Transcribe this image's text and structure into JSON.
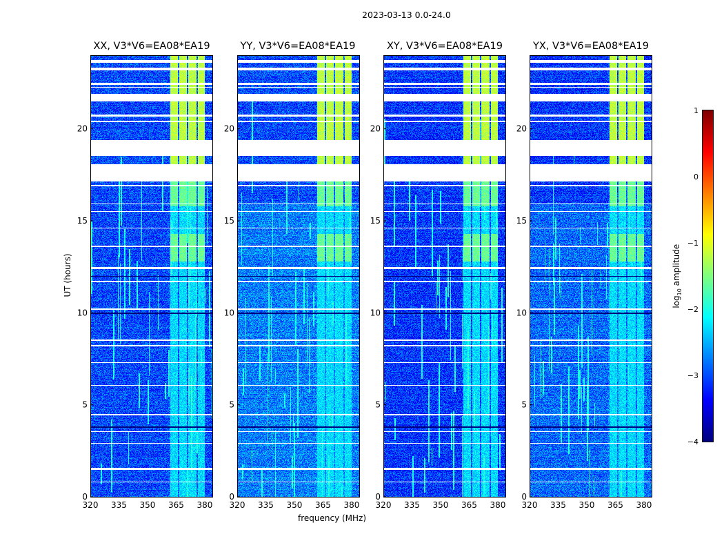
{
  "chart_data": {
    "type": "heatmap",
    "suptitle": "2023-03-13 0.0-24.0",
    "xlabel": "frequency (MHz)",
    "ylabel": "UT (hours)",
    "xlim": [
      320,
      384
    ],
    "ylim": [
      0,
      24
    ],
    "xticks": [
      "320",
      "335",
      "350",
      "365",
      "380"
    ],
    "yticks": [
      "0",
      "5",
      "10",
      "15",
      "20"
    ],
    "panels": [
      {
        "title": "XX, V3*V6=EA08*EA19"
      },
      {
        "title": "YY, V3*V6=EA08*EA19"
      },
      {
        "title": "XY, V3*V6=EA08*EA19"
      },
      {
        "title": "YX, V3*V6=EA08*EA19"
      }
    ],
    "colorbar": {
      "label_main": "log",
      "label_sub": "10",
      "label_rest": " amplitude",
      "range": [
        -4,
        1
      ],
      "ticks": [
        "1",
        "0",
        "−1",
        "−2",
        "−3",
        "−4"
      ],
      "colormap": "jet"
    },
    "background_log_amplitude": -3.0,
    "rfi_band_mhz": [
      361,
      380
    ],
    "rfi_band_log_amplitude_day": -1.2,
    "rfi_band_log_amplitude_night": -2.3,
    "flagged_hours": [
      [
        23.6,
        23.75
      ],
      [
        23.2,
        23.35
      ],
      [
        22.4,
        22.5
      ],
      [
        22.25,
        22.3
      ],
      [
        21.5,
        21.9
      ],
      [
        20.7,
        20.8
      ],
      [
        20.4,
        20.45
      ],
      [
        18.55,
        19.4
      ],
      [
        17.15,
        18.1
      ],
      [
        16.9,
        16.95
      ],
      [
        15.9,
        15.95
      ],
      [
        15.5,
        15.55
      ],
      [
        14.6,
        14.65
      ],
      [
        13.6,
        13.65
      ],
      [
        12.4,
        12.5
      ],
      [
        11.7,
        11.75
      ],
      [
        10.2,
        10.25
      ],
      [
        8.5,
        8.55
      ],
      [
        8.2,
        8.25
      ],
      [
        7.3,
        7.35
      ],
      [
        6.05,
        6.1
      ],
      [
        4.45,
        4.5
      ],
      [
        3.55,
        3.6
      ],
      [
        2.9,
        2.95
      ],
      [
        1.5,
        1.6
      ],
      [
        0.8,
        0.85
      ]
    ]
  }
}
